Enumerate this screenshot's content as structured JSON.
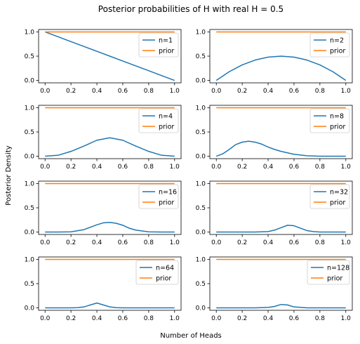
{
  "figure": {
    "title": "Posterior probabilities of H with real H = 0.5",
    "xlabel": "Number of Heads",
    "ylabel": "Posterior Density"
  },
  "colors": {
    "posterior": "#1f77b4",
    "prior": "#ff7f0e"
  },
  "chart_data": [
    {
      "type": "line",
      "legend": "top-right",
      "x": [
        0,
        0.1,
        0.2,
        0.3,
        0.4,
        0.5,
        0.6,
        0.7,
        0.8,
        0.9,
        1.0
      ],
      "xticks": [
        "0.0",
        "0.2",
        "0.4",
        "0.6",
        "0.8",
        "1.0"
      ],
      "yticks": [
        "0.0",
        "0.5",
        "1.0"
      ],
      "xlim": [
        -0.05,
        1.05
      ],
      "ylim": [
        -0.05,
        1.05
      ],
      "series": [
        {
          "name": "n=1",
          "values": [
            1.0,
            0.9,
            0.8,
            0.7,
            0.6,
            0.5,
            0.4,
            0.3,
            0.2,
            0.1,
            0.0
          ]
        },
        {
          "name": "prior",
          "values": [
            1,
            1,
            1,
            1,
            1,
            1,
            1,
            1,
            1,
            1,
            1
          ]
        }
      ]
    },
    {
      "type": "line",
      "legend": "top-right",
      "x": [
        0,
        0.1,
        0.2,
        0.3,
        0.4,
        0.5,
        0.6,
        0.7,
        0.8,
        0.9,
        1.0
      ],
      "xticks": [
        "0.0",
        "0.2",
        "0.4",
        "0.6",
        "0.8",
        "1.0"
      ],
      "yticks": [
        "0.0",
        "0.5",
        "1.0"
      ],
      "xlim": [
        -0.05,
        1.05
      ],
      "ylim": [
        -0.05,
        1.05
      ],
      "series": [
        {
          "name": "n=2",
          "values": [
            0.0,
            0.18,
            0.32,
            0.42,
            0.48,
            0.5,
            0.48,
            0.42,
            0.32,
            0.18,
            0.0
          ]
        },
        {
          "name": "prior",
          "values": [
            1,
            1,
            1,
            1,
            1,
            1,
            1,
            1,
            1,
            1,
            1
          ]
        }
      ]
    },
    {
      "type": "line",
      "legend": "top-right",
      "x": [
        0,
        0.1,
        0.2,
        0.3,
        0.4,
        0.5,
        0.6,
        0.7,
        0.8,
        0.9,
        1.0
      ],
      "xticks": [
        "0.0",
        "0.2",
        "0.4",
        "0.6",
        "0.8",
        "1.0"
      ],
      "yticks": [
        "0.0",
        "0.5",
        "1.0"
      ],
      "xlim": [
        -0.05,
        1.05
      ],
      "ylim": [
        -0.05,
        1.05
      ],
      "series": [
        {
          "name": "n=4",
          "values": [
            0.0,
            0.02,
            0.1,
            0.21,
            0.33,
            0.38,
            0.33,
            0.21,
            0.1,
            0.02,
            0.0
          ]
        },
        {
          "name": "prior",
          "values": [
            1,
            1,
            1,
            1,
            1,
            1,
            1,
            1,
            1,
            1,
            1
          ]
        }
      ]
    },
    {
      "type": "line",
      "legend": "top-right",
      "x": [
        0,
        0.05,
        0.1,
        0.15,
        0.2,
        0.25,
        0.3,
        0.35,
        0.4,
        0.45,
        0.5,
        0.6,
        0.7,
        0.8,
        0.9,
        1.0
      ],
      "xticks": [
        "0.0",
        "0.2",
        "0.4",
        "0.6",
        "0.8",
        "1.0"
      ],
      "yticks": [
        "0.0",
        "0.5",
        "1.0"
      ],
      "xlim": [
        -0.05,
        1.05
      ],
      "ylim": [
        -0.05,
        1.05
      ],
      "series": [
        {
          "name": "n=8",
          "values": [
            0.0,
            0.05,
            0.14,
            0.24,
            0.29,
            0.31,
            0.29,
            0.25,
            0.19,
            0.14,
            0.1,
            0.04,
            0.01,
            0.0,
            0.0,
            0.0
          ]
        },
        {
          "name": "prior",
          "values": [
            1,
            1,
            1,
            1,
            1,
            1,
            1,
            1,
            1,
            1,
            1,
            1,
            1,
            1,
            1,
            1
          ]
        }
      ]
    },
    {
      "type": "line",
      "legend": "top-right",
      "x": [
        0,
        0.1,
        0.2,
        0.3,
        0.35,
        0.4,
        0.45,
        0.5,
        0.55,
        0.6,
        0.65,
        0.7,
        0.8,
        0.9,
        1.0
      ],
      "xticks": [
        "0.0",
        "0.2",
        "0.4",
        "0.6",
        "0.8",
        "1.0"
      ],
      "yticks": [
        "0.0",
        "0.5",
        "1.0"
      ],
      "xlim": [
        -0.05,
        1.05
      ],
      "ylim": [
        -0.05,
        1.05
      ],
      "series": [
        {
          "name": "n=16",
          "values": [
            0.0,
            0.0,
            0.005,
            0.05,
            0.1,
            0.15,
            0.19,
            0.2,
            0.18,
            0.14,
            0.08,
            0.04,
            0.005,
            0.0,
            0.0
          ]
        },
        {
          "name": "prior",
          "values": [
            1,
            1,
            1,
            1,
            1,
            1,
            1,
            1,
            1,
            1,
            1,
            1,
            1,
            1,
            1
          ]
        }
      ]
    },
    {
      "type": "line",
      "legend": "top-right",
      "x": [
        0,
        0.1,
        0.2,
        0.3,
        0.4,
        0.45,
        0.5,
        0.55,
        0.6,
        0.65,
        0.7,
        0.75,
        0.8,
        0.9,
        1.0
      ],
      "xticks": [
        "0.0",
        "0.2",
        "0.4",
        "0.6",
        "0.8",
        "1.0"
      ],
      "yticks": [
        "0.0",
        "0.5",
        "1.0"
      ],
      "xlim": [
        -0.05,
        1.05
      ],
      "ylim": [
        -0.05,
        1.05
      ],
      "series": [
        {
          "name": "n=32",
          "values": [
            0.0,
            0.0,
            0.0,
            0.0,
            0.01,
            0.04,
            0.09,
            0.14,
            0.13,
            0.08,
            0.03,
            0.01,
            0.0,
            0.0,
            0.0
          ]
        },
        {
          "name": "prior",
          "values": [
            1,
            1,
            1,
            1,
            1,
            1,
            1,
            1,
            1,
            1,
            1,
            1,
            1,
            1,
            1
          ]
        }
      ]
    },
    {
      "type": "line",
      "legend": "top-right",
      "x": [
        0,
        0.1,
        0.2,
        0.25,
        0.3,
        0.35,
        0.4,
        0.45,
        0.5,
        0.55,
        0.6,
        0.7,
        0.8,
        0.9,
        1.0
      ],
      "xticks": [
        "0.0",
        "0.2",
        "0.4",
        "0.6",
        "0.8",
        "1.0"
      ],
      "yticks": [
        "0.0",
        "0.5",
        "1.0"
      ],
      "xlim": [
        -0.05,
        1.05
      ],
      "ylim": [
        -0.05,
        1.05
      ],
      "series": [
        {
          "name": "n=64",
          "values": [
            0.0,
            0.0,
            0.0,
            0.005,
            0.02,
            0.06,
            0.1,
            0.06,
            0.02,
            0.005,
            0.0,
            0.0,
            0.0,
            0.0,
            0.0
          ]
        },
        {
          "name": "prior",
          "values": [
            1,
            1,
            1,
            1,
            1,
            1,
            1,
            1,
            1,
            1,
            1,
            1,
            1,
            1,
            1
          ]
        }
      ]
    },
    {
      "type": "line",
      "legend": "top-right",
      "x": [
        0,
        0.1,
        0.2,
        0.3,
        0.4,
        0.45,
        0.5,
        0.55,
        0.6,
        0.7,
        0.8,
        0.9,
        1.0
      ],
      "xticks": [
        "0.0",
        "0.2",
        "0.4",
        "0.6",
        "0.8",
        "1.0"
      ],
      "yticks": [
        "0.0",
        "0.5",
        "1.0"
      ],
      "xlim": [
        -0.05,
        1.05
      ],
      "ylim": [
        -0.05,
        1.05
      ],
      "series": [
        {
          "name": "n=128",
          "values": [
            0.0,
            0.0,
            0.0,
            0.0,
            0.01,
            0.03,
            0.07,
            0.06,
            0.02,
            0.0,
            0.0,
            0.0,
            0.0
          ]
        },
        {
          "name": "prior",
          "values": [
            1,
            1,
            1,
            1,
            1,
            1,
            1,
            1,
            1,
            1,
            1,
            1,
            1
          ]
        }
      ]
    }
  ]
}
